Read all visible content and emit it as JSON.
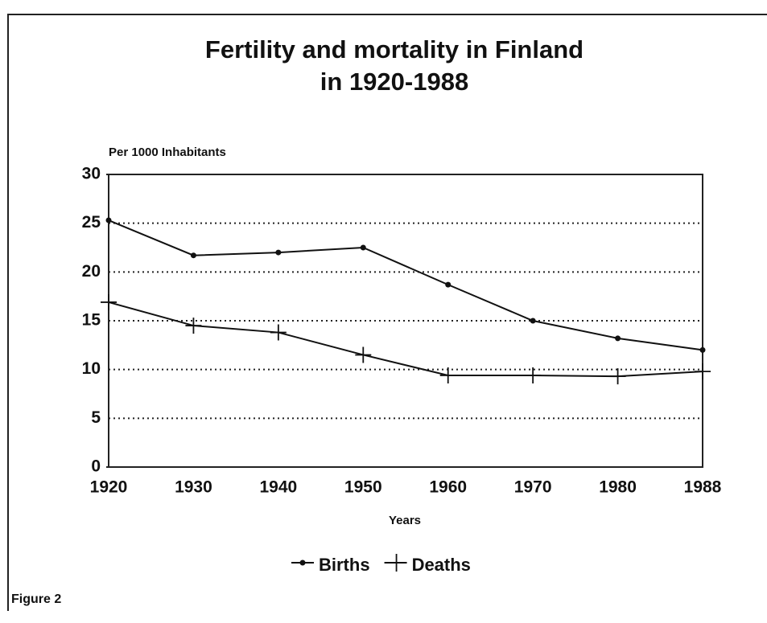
{
  "caption": "Figure 2",
  "chart_data": {
    "type": "line",
    "title": [
      "Fertility and mortality in Finland",
      "in 1920-1988"
    ],
    "y_label": "Per 1000 Inhabitants",
    "x_label": "Years",
    "categories": [
      "1920",
      "1930",
      "1940",
      "1950",
      "1960",
      "1970",
      "1980",
      "1988"
    ],
    "series": [
      {
        "name": "Births",
        "color": "#111111",
        "marker": "dot",
        "values": [
          25.3,
          21.7,
          22.0,
          22.5,
          18.7,
          15.0,
          13.2,
          12.0
        ]
      },
      {
        "name": "Deaths",
        "color": "#111111",
        "marker": "plus",
        "values": [
          16.9,
          14.5,
          13.8,
          11.5,
          9.4,
          9.4,
          9.3,
          9.8
        ]
      }
    ],
    "ylim": [
      0,
      30
    ],
    "yticks": [
      0,
      5,
      10,
      15,
      20,
      25,
      30
    ],
    "grid": true,
    "legend": "bottom"
  }
}
